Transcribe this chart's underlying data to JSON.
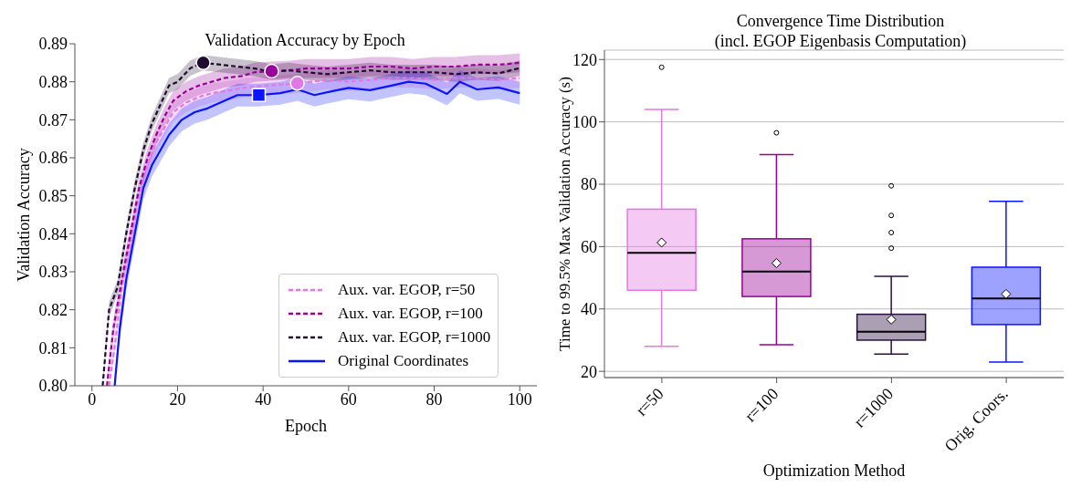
{
  "chart_data": [
    {
      "type": "line",
      "title": "Validation Accuracy by Epoch",
      "xlabel": "Epoch",
      "ylabel": "Validation Accuracy",
      "xlim": [
        -4,
        104
      ],
      "xticks": [
        0,
        20,
        40,
        60,
        80,
        100
      ],
      "ylim": [
        0.8,
        0.89
      ],
      "yticks": [
        {
          "value": 0.8,
          "label": "0.80"
        },
        0.81,
        0.82,
        0.83,
        0.84,
        0.85,
        0.86,
        0.87,
        0.88,
        0.89
      ],
      "grid": false,
      "legend": "bottom right",
      "series": [
        {
          "name": "Aux. var. EGOP, r=50",
          "color": "#e377e3",
          "line_style": "dashed",
          "x": [
            4,
            5.5,
            7,
            9,
            11,
            13,
            15,
            17,
            19,
            22,
            25,
            28,
            32,
            36,
            41,
            48,
            55,
            60,
            65,
            70,
            75,
            80,
            85,
            90,
            95,
            100
          ],
          "values": [
            0.8,
            0.812,
            0.826,
            0.838,
            0.85,
            0.858,
            0.864,
            0.868,
            0.872,
            0.8745,
            0.876,
            0.877,
            0.8777,
            0.8785,
            0.879,
            0.8796,
            0.8805,
            0.88,
            0.8805,
            0.881,
            0.881,
            0.8805,
            0.881,
            0.881,
            0.8805,
            0.881
          ],
          "lower": [
            0.8,
            0.8095,
            0.8235,
            0.8355,
            0.8475,
            0.8555,
            0.8615,
            0.8655,
            0.8695,
            0.872,
            0.8735,
            0.8745,
            0.8752,
            0.876,
            0.8765,
            0.8771,
            0.878,
            0.8775,
            0.878,
            0.8785,
            0.8785,
            0.878,
            0.8785,
            0.8785,
            0.878,
            0.8785
          ],
          "upper": [
            0.8025,
            0.8145,
            0.8285,
            0.8405,
            0.8525,
            0.8605,
            0.8665,
            0.8705,
            0.8745,
            0.877,
            0.8785,
            0.8795,
            0.8802,
            0.881,
            0.8815,
            0.8821,
            0.883,
            0.8825,
            0.883,
            0.8835,
            0.8835,
            0.883,
            0.8835,
            0.8835,
            0.883,
            0.8835
          ]
        },
        {
          "name": "Aux. var. EGOP, r=100",
          "color": "#990099",
          "line_style": "dashed",
          "x": [
            3.5,
            5,
            7,
            9,
            11,
            13,
            15,
            17,
            19,
            22,
            25,
            28,
            31,
            35,
            38,
            42,
            46,
            50,
            55,
            60,
            65,
            70,
            75,
            80,
            85,
            90,
            95,
            100
          ],
          "values": [
            0.8,
            0.815,
            0.828,
            0.84,
            0.852,
            0.86,
            0.866,
            0.871,
            0.875,
            0.8775,
            0.879,
            0.88,
            0.881,
            0.8815,
            0.8825,
            0.8828,
            0.883,
            0.8835,
            0.8835,
            0.8835,
            0.884,
            0.884,
            0.8835,
            0.884,
            0.884,
            0.8845,
            0.8845,
            0.885
          ],
          "lower": [
            0.8,
            0.8125,
            0.8255,
            0.8375,
            0.8495,
            0.8575,
            0.8635,
            0.8685,
            0.8725,
            0.875,
            0.8765,
            0.8775,
            0.8785,
            0.879,
            0.88,
            0.8803,
            0.8805,
            0.881,
            0.881,
            0.881,
            0.8815,
            0.8815,
            0.881,
            0.8815,
            0.8815,
            0.882,
            0.882,
            0.8825
          ],
          "upper": [
            0.8025,
            0.8175,
            0.8305,
            0.8425,
            0.8545,
            0.8625,
            0.8685,
            0.8735,
            0.8775,
            0.88,
            0.8815,
            0.8825,
            0.8835,
            0.884,
            0.885,
            0.8853,
            0.8855,
            0.886,
            0.886,
            0.886,
            0.8865,
            0.8865,
            0.886,
            0.8865,
            0.8865,
            0.887,
            0.887,
            0.8875
          ]
        },
        {
          "name": "Aux. var. EGOP, r=1000",
          "color": "#1f0c30",
          "line_style": "dashed",
          "x": [
            2.5,
            4,
            6,
            8,
            10,
            12,
            14,
            16,
            18,
            20,
            23,
            26,
            30,
            34,
            38,
            42,
            46,
            50,
            55,
            60,
            65,
            70,
            75,
            80,
            85,
            90,
            95,
            100
          ],
          "values": [
            0.8,
            0.82,
            0.826,
            0.84,
            0.852,
            0.862,
            0.869,
            0.874,
            0.879,
            0.88,
            0.8836,
            0.885,
            0.8845,
            0.884,
            0.8835,
            0.8826,
            0.883,
            0.8825,
            0.882,
            0.8825,
            0.883,
            0.8825,
            0.8825,
            0.8825,
            0.882,
            0.8825,
            0.8822,
            0.8836
          ],
          "lower": [
            0.8,
            0.818,
            0.824,
            0.838,
            0.85,
            0.86,
            0.867,
            0.872,
            0.877,
            0.878,
            0.8816,
            0.883,
            0.8825,
            0.882,
            0.8815,
            0.8806,
            0.881,
            0.8805,
            0.88,
            0.8805,
            0.881,
            0.8805,
            0.8805,
            0.8805,
            0.88,
            0.8805,
            0.8802,
            0.8816
          ],
          "upper": [
            0.802,
            0.822,
            0.828,
            0.842,
            0.854,
            0.864,
            0.871,
            0.876,
            0.881,
            0.882,
            0.8856,
            0.887,
            0.8865,
            0.886,
            0.8855,
            0.8846,
            0.885,
            0.8845,
            0.884,
            0.8845,
            0.885,
            0.8845,
            0.8845,
            0.8845,
            0.884,
            0.8845,
            0.8842,
            0.8856
          ]
        },
        {
          "name": "Original Coordinates",
          "color": "#0a14ff",
          "line_style": "solid",
          "x": [
            5.3,
            6.5,
            8,
            10,
            12,
            14,
            16,
            18,
            21,
            24,
            27,
            30,
            34,
            39,
            44,
            48,
            52,
            56,
            60,
            65,
            70,
            74,
            78,
            83,
            86,
            90,
            95,
            100
          ],
          "values": [
            0.8,
            0.815,
            0.828,
            0.84,
            0.852,
            0.858,
            0.862,
            0.866,
            0.87,
            0.872,
            0.873,
            0.8745,
            0.8765,
            0.8765,
            0.877,
            0.878,
            0.8765,
            0.8775,
            0.8784,
            0.8778,
            0.879,
            0.88,
            0.8795,
            0.8768,
            0.88,
            0.878,
            0.8785,
            0.877
          ],
          "lower": [
            0.8,
            0.812,
            0.825,
            0.837,
            0.849,
            0.855,
            0.859,
            0.863,
            0.867,
            0.869,
            0.87,
            0.8715,
            0.8735,
            0.8735,
            0.874,
            0.875,
            0.8735,
            0.8745,
            0.8754,
            0.8748,
            0.876,
            0.877,
            0.8765,
            0.8738,
            0.877,
            0.875,
            0.8755,
            0.874
          ],
          "upper": [
            0.803,
            0.818,
            0.831,
            0.843,
            0.855,
            0.861,
            0.865,
            0.869,
            0.873,
            0.875,
            0.876,
            0.8775,
            0.8795,
            0.8795,
            0.88,
            0.881,
            0.8795,
            0.8805,
            0.8814,
            0.8808,
            0.882,
            0.883,
            0.8825,
            0.8798,
            0.883,
            0.881,
            0.8815,
            0.88
          ]
        },
        {
          "type": "scatter",
          "color": "#e377e3",
          "marker": "circle",
          "x": [
            48
          ],
          "values": [
            0.8796
          ]
        },
        {
          "type": "scatter",
          "color": "#990099",
          "marker": "circle",
          "x": [
            42
          ],
          "values": [
            0.8828
          ]
        },
        {
          "type": "scatter",
          "color": "#1f0c30",
          "marker": "circle",
          "x": [
            26
          ],
          "values": [
            0.885
          ]
        },
        {
          "type": "scatter",
          "color": "#0a14ff",
          "marker": "square",
          "x": [
            39
          ],
          "values": [
            0.8765
          ]
        }
      ]
    },
    {
      "type": "box",
      "title": "Convergence Time Distribution\n(incl. EGOP Eigenbasis Computation)",
      "xlabel": "Optimization Method",
      "ylabel": "Time to 99.5% Max Validation Accuracy (s)",
      "categories": [
        "r=50",
        "r=100",
        "r=1000",
        "Orig. Coors."
      ],
      "colors": [
        "#e377e3",
        "#990099",
        "#2a1040",
        "#0a14ff"
      ],
      "ylim": [
        18,
        123
      ],
      "yticks": [
        20,
        40,
        60,
        80,
        100,
        120
      ],
      "grid": "y",
      "boxes": [
        {
          "low": 28,
          "q1": 46,
          "median": 58,
          "q3": 72,
          "high": 104,
          "mean": 61.3,
          "outliers": [
            117.5
          ]
        },
        {
          "low": 28.5,
          "q1": 44,
          "median": 52,
          "q3": 62.5,
          "high": 89.5,
          "mean": 54.7,
          "outliers": [
            96.5
          ]
        },
        {
          "low": 25.5,
          "q1": 30,
          "median": 32.7,
          "q3": 38.3,
          "high": 50.5,
          "mean": 36.6,
          "outliers": [
            59.5,
            64.5,
            70,
            79.5
          ]
        },
        {
          "low": 23,
          "q1": 35,
          "median": 43.4,
          "q3": 53.4,
          "high": 74.5,
          "mean": 44.8
        }
      ]
    }
  ]
}
